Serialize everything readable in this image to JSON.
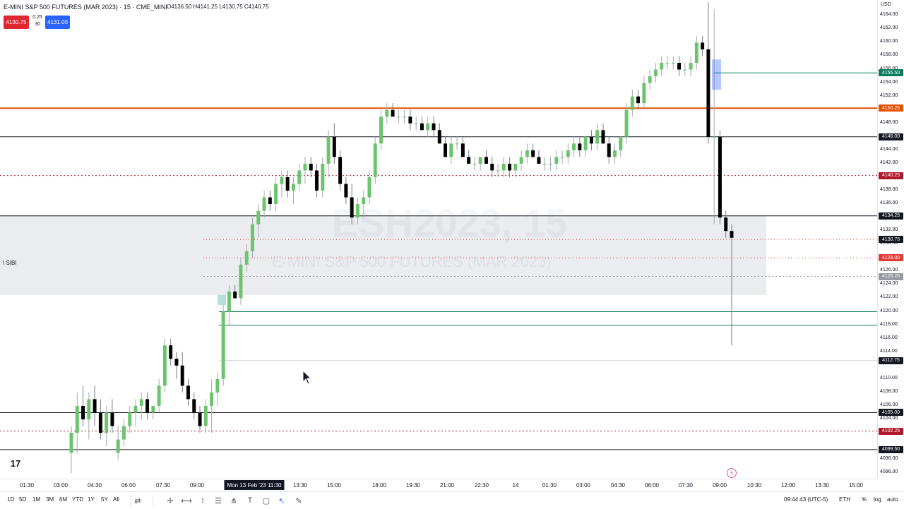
{
  "header": {
    "title": "E-MINI S&P 500 FUTURES (MAR 2023) · 15 · CME_MINI",
    "ohlc": "O4136.50 H4141.25 L4130.75 C4140.75",
    "sell_price": "4130.75",
    "buy_price": "4131.00",
    "spread_top": "0.25",
    "spread_bottom": "30"
  },
  "watermark": {
    "symbol": "ESH2023, 15",
    "name": "E-MINI S&P 500 FUTURES (MAR 2023)"
  },
  "zone_label": "\\ SIBI",
  "price_axis": {
    "currency": "USD",
    "ticks": [
      "4164.00",
      "4162.00",
      "4160.00",
      "4158.00",
      "4154.00",
      "4152.00",
      "4148.00",
      "4144.00",
      "4142.00",
      "4138.00",
      "4136.00",
      "4132.00",
      "4124.00",
      "4122.00",
      "4120.00",
      "4118.00",
      "4116.00",
      "4114.00",
      "4110.00",
      "4108.00",
      "4106.00",
      "4104.00",
      "4098.00",
      "4096.00"
    ],
    "tags": [
      {
        "text": "4155.50",
        "color": "#0b7d5e",
        "price": 4155.5
      },
      {
        "text": "4150.25",
        "color": "#e65100",
        "price": 4150.25
      },
      {
        "text": "4146.00",
        "color": "#131722",
        "price": 4146.0
      },
      {
        "text": "4140.25",
        "color": "#b2182b",
        "price": 4140.25
      },
      {
        "text": "4134.25",
        "color": "#131722",
        "price": 4134.25
      },
      {
        "text": "4130.75",
        "color": "#131722",
        "price": 4130.75
      },
      {
        "text": "4128.00",
        "color": "#e53935",
        "price": 4128.0
      },
      {
        "text": "4125.25",
        "color": "#9598a1",
        "price": 4125.25
      },
      {
        "text": "4112.75",
        "color": "#131722",
        "price": 4112.75
      },
      {
        "text": "4105.00",
        "color": "#131722",
        "price": 4105.0
      },
      {
        "text": "4102.25",
        "color": "#b2182b",
        "price": 4102.25
      },
      {
        "text": "4099.50",
        "color": "#131722",
        "price": 4099.5
      }
    ],
    "extra_partial": [
      "4156.00",
      "4130.00",
      "4126.00"
    ]
  },
  "time_axis": {
    "labels": [
      "01:30",
      "03:00",
      "04:30",
      "06:00",
      "07:30",
      "09:00",
      "13:30",
      "15:00",
      "18:00",
      "19:30",
      "21:00",
      "22:30",
      "14",
      "01:30",
      "03:00",
      "04:30",
      "06:00",
      "07:30",
      "09:00",
      "10:30",
      "12:00",
      "13:30",
      "15:00"
    ],
    "current": "Mon 13 Feb '23  11:30"
  },
  "bottom_bar": {
    "timeframes": [
      "1D",
      "5D",
      "1M",
      "3M",
      "6M",
      "YTD",
      "1Y",
      "5Y",
      "All"
    ],
    "clock": "09:44:43 (UTC-5)",
    "session": "ETH",
    "percent": "%",
    "log": "log",
    "auto": "auto"
  },
  "colors": {
    "up": "#6cc46d",
    "down": "#000000",
    "bg": "#ffffff",
    "sell": "#e0262f",
    "buy": "#2962ff"
  },
  "chart_data": {
    "type": "candlestick",
    "title": "E-MINI S&P 500 FUTURES (MAR 2023) · 15 · CME_MINI",
    "symbol": "ESH2023",
    "interval": "15",
    "ylim": [
      4095.5,
      4165.5
    ],
    "last_bar": {
      "open": 4136.5,
      "high": 4141.25,
      "low": 4130.75,
      "close": 4140.75
    },
    "horizontal_levels": [
      4155.5,
      4150.25,
      4146.0,
      4140.25,
      4134.25,
      4130.75,
      4128.0,
      4125.25,
      4120.0,
      4118.0,
      4112.75,
      4105.0,
      4102.25,
      4099.5
    ],
    "zones": [
      {
        "label": "SIBI",
        "top": 4134.25,
        "bottom": 4122.5
      }
    ],
    "candles": [
      [
        4099,
        4103,
        4096,
        4102
      ],
      [
        4102,
        4108,
        4099,
        4106
      ],
      [
        4106,
        4109,
        4103,
        4104
      ],
      [
        4104,
        4108,
        4101,
        4107
      ],
      [
        4107,
        4109,
        4103,
        4105
      ],
      [
        4105,
        4107,
        4101,
        4102
      ],
      [
        4102,
        4106,
        4100,
        4105
      ],
      [
        4105,
        4107,
        4102,
        4103
      ],
      [
        4099,
        4103,
        4098,
        4101
      ],
      [
        4101,
        4104,
        4100,
        4103
      ],
      [
        4103,
        4106,
        4102,
        4105
      ],
      [
        4105,
        4107,
        4103,
        4106
      ],
      [
        4106,
        4108,
        4104,
        4107
      ],
      [
        4107,
        4108,
        4104,
        4105
      ],
      [
        4105,
        4106,
        4104,
        4106
      ],
      [
        4106,
        4110,
        4105,
        4109
      ],
      [
        4109,
        4116,
        4108,
        4115
      ],
      [
        4115,
        4116,
        4112,
        4113
      ],
      [
        4113,
        4114,
        4110,
        4112
      ],
      [
        4112,
        4114,
        4108,
        4109
      ],
      [
        4109,
        4110,
        4106,
        4107
      ],
      [
        4107,
        4108,
        4104,
        4105
      ],
      [
        4105,
        4106,
        4102,
        4103
      ],
      [
        4103,
        4107,
        4102,
        4106
      ],
      [
        4106,
        4110,
        4102,
        4108
      ],
      [
        4108,
        4111,
        4106,
        4110
      ],
      [
        4110,
        4121,
        4109,
        4120
      ],
      [
        4120,
        4124,
        4118,
        4123
      ],
      [
        4123,
        4124,
        4122,
        4122
      ],
      [
        4122,
        4128,
        4121,
        4127
      ],
      [
        4127,
        4130,
        4126,
        4129
      ],
      [
        4129,
        4134,
        4128,
        4133
      ],
      [
        4133,
        4136,
        4131,
        4135
      ],
      [
        4135,
        4138,
        4134,
        4137
      ],
      [
        4137,
        4138,
        4135,
        4136
      ],
      [
        4136,
        4140,
        4135,
        4139
      ],
      [
        4139,
        4141,
        4137,
        4140
      ],
      [
        4140,
        4141,
        4137,
        4138
      ],
      [
        4138,
        4140,
        4136,
        4139
      ],
      [
        4139,
        4142,
        4138,
        4141
      ],
      [
        4141,
        4143,
        4139,
        4142
      ],
      [
        4142,
        4143,
        4140,
        4141
      ],
      [
        4141,
        4142,
        4137,
        4138
      ],
      [
        4138,
        4143,
        4137,
        4142
      ],
      [
        4142,
        4147,
        4140,
        4146
      ],
      [
        4146,
        4148,
        4142,
        4143
      ],
      [
        4143,
        4144,
        4138,
        4139
      ],
      [
        4139,
        4140,
        4136,
        4137
      ],
      [
        4137,
        4139,
        4133,
        4134
      ],
      [
        4134,
        4137,
        4133,
        4136
      ],
      [
        4136,
        4138,
        4134,
        4137
      ],
      [
        4137,
        4141,
        4136,
        4140
      ],
      [
        4140,
        4146,
        4139,
        4145
      ],
      [
        4145,
        4150,
        4144,
        4149
      ],
      [
        4149,
        4151,
        4148,
        4150
      ],
      [
        4150,
        4151,
        4149,
        4149
      ],
      [
        4149,
        4150,
        4148,
        4149
      ],
      [
        4149,
        4150,
        4148,
        4149
      ],
      [
        4149,
        4150,
        4147,
        4148
      ],
      [
        4148,
        4149,
        4147,
        4148
      ],
      [
        4148,
        4149,
        4147,
        4147
      ],
      [
        4147,
        4149,
        4146,
        4148
      ],
      [
        4148,
        4149,
        4146,
        4147
      ],
      [
        4147,
        4148,
        4145,
        4145
      ],
      [
        4145,
        4146,
        4143,
        4143
      ],
      [
        4143,
        4146,
        4142,
        4145
      ],
      [
        4145,
        4146,
        4144,
        4145
      ],
      [
        4145,
        4146,
        4143,
        4143
      ],
      [
        4143,
        4144,
        4142,
        4142
      ],
      [
        4142,
        4143,
        4141,
        4142
      ],
      [
        4142,
        4143,
        4141,
        4143
      ],
      [
        4143,
        4144,
        4142,
        4142
      ],
      [
        4142,
        4143,
        4140,
        4141
      ],
      [
        4141,
        4142,
        4140,
        4141
      ],
      [
        4141,
        4143,
        4140,
        4142
      ],
      [
        4142,
        4143,
        4140,
        4141
      ],
      [
        4141,
        4142,
        4140,
        4142
      ],
      [
        4142,
        4144,
        4141,
        4143
      ],
      [
        4143,
        4145,
        4142,
        4144
      ],
      [
        4144,
        4145,
        4143,
        4143
      ],
      [
        4143,
        4144,
        4142,
        4142
      ],
      [
        4142,
        4143,
        4141,
        4142
      ],
      [
        4142,
        4143,
        4141,
        4142
      ],
      [
        4142,
        4144,
        4141,
        4143
      ],
      [
        4143,
        4144,
        4142,
        4143
      ],
      [
        4143,
        4145,
        4142,
        4144
      ],
      [
        4144,
        4146,
        4143,
        4145
      ],
      [
        4145,
        4146,
        4143,
        4144
      ],
      [
        4144,
        4146,
        4143,
        4146
      ],
      [
        4146,
        4147,
        4144,
        4145
      ],
      [
        4145,
        4148,
        4144,
        4147
      ],
      [
        4147,
        4148,
        4145,
        4145
      ],
      [
        4145,
        4146,
        4142,
        4143
      ],
      [
        4143,
        4145,
        4142,
        4144
      ],
      [
        4144,
        4146,
        4143,
        4146
      ],
      [
        4146,
        4151,
        4145,
        4150
      ],
      [
        4150,
        4153,
        4149,
        4152
      ],
      [
        4152,
        4153,
        4150,
        4151
      ],
      [
        4151,
        4155,
        4150,
        4154
      ],
      [
        4154,
        4156,
        4153,
        4155
      ],
      [
        4155,
        4157,
        4154,
        4156
      ],
      [
        4156,
        4158,
        4155,
        4157
      ],
      [
        4157,
        4158,
        4156,
        4157
      ],
      [
        4157,
        4158,
        4156,
        4157
      ],
      [
        4157,
        4158,
        4155,
        4156
      ],
      [
        4156,
        4157,
        4155,
        4156
      ],
      [
        4156,
        4158,
        4155,
        4157
      ],
      [
        4157,
        4161,
        4156,
        4160
      ],
      [
        4160,
        4161,
        4158,
        4159
      ],
      [
        4159,
        4166,
        4145,
        4146
      ],
      [
        4146,
        4165,
        4133,
        4146
      ],
      [
        4146,
        4147,
        4133,
        4134
      ],
      [
        4134,
        4135,
        4131,
        4132
      ],
      [
        4132,
        4133,
        4115,
        4131
      ]
    ]
  }
}
